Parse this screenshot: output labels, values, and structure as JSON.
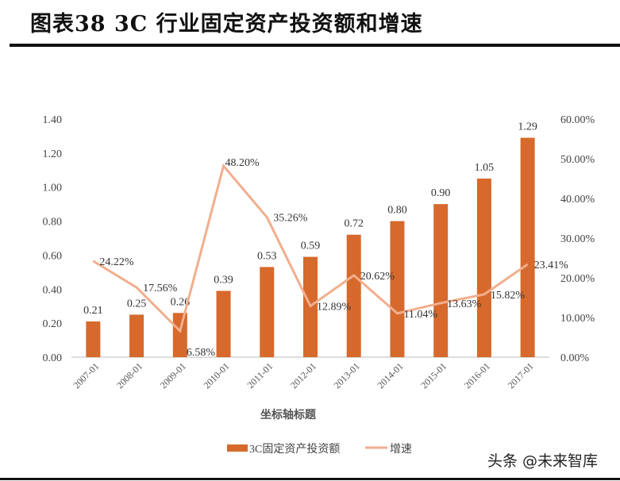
{
  "title": "图表38 3C 行业固定资产投资额和增速",
  "watermark": "头条 @未来智库",
  "chart_data": {
    "type": "bar+line",
    "categories": [
      "2007-01",
      "2008-01",
      "2009-01",
      "2010-01",
      "2011-01",
      "2012-01",
      "2013-01",
      "2014-01",
      "2015-01",
      "2016-01",
      "2017-01"
    ],
    "series": [
      {
        "name": "3C固定资产投资额",
        "type": "bar",
        "axis": "left",
        "color": "#D6692B",
        "values": [
          0.21,
          0.25,
          0.26,
          0.39,
          0.53,
          0.59,
          0.72,
          0.8,
          0.9,
          1.05,
          1.29
        ],
        "labels": [
          "0.21",
          "0.25",
          "0.26",
          "0.39",
          "0.53",
          "0.59",
          "0.72",
          "0.80",
          "0.90",
          "1.05",
          "1.29"
        ]
      },
      {
        "name": "增速",
        "type": "line",
        "axis": "right",
        "color": "#F2AE8D",
        "values": [
          24.22,
          17.56,
          6.58,
          48.2,
          35.26,
          12.89,
          20.62,
          11.04,
          13.63,
          15.82,
          23.41
        ],
        "labels": [
          "24.22%",
          "17.56%",
          "6.58%",
          "48.20%",
          "35.26%",
          "12.89%",
          "20.62%",
          "11.04%",
          "13.63%",
          "15.82%",
          "23.41%"
        ]
      }
    ],
    "xlabel": "坐标轴标题",
    "ylim": [
      0,
      1.4
    ],
    "y_ticks": [
      "0.00",
      "0.20",
      "0.40",
      "0.60",
      "0.80",
      "1.00",
      "1.20",
      "1.40"
    ],
    "y2lim": [
      0,
      60
    ],
    "y2_ticks": [
      "0.00%",
      "10.00%",
      "20.00%",
      "30.00%",
      "40.00%",
      "50.00%",
      "60.00%"
    ],
    "grid": false,
    "legend": "bottom"
  }
}
